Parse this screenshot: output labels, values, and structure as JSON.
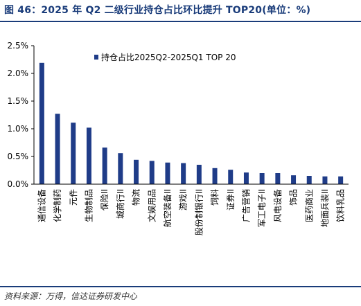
{
  "header": {
    "title": "图 46：2025 年 Q2 二级行业持仓占比环比提升 TOP20(单位：%)"
  },
  "footer": {
    "source": "资料来源：万得，信达证券研发中心"
  },
  "colors": {
    "title": "#1a3c7a",
    "bar": "#1f3c88"
  },
  "chart_data": {
    "type": "bar",
    "title": "",
    "xlabel": "",
    "ylabel": "",
    "categories": [
      "通信设备",
      "化学制药",
      "元件",
      "生物制品",
      "保险II",
      "城商行II",
      "物流",
      "文娱用品",
      "航空装备II",
      "游戏II",
      "股份制银行II",
      "饲料",
      "证券II",
      "广告营销",
      "军工电子II",
      "风电设备",
      "饰品",
      "医药商业",
      "地面兵装II",
      "饮料乳品"
    ],
    "series": [
      {
        "name": "持仓占比2025Q2-2025Q1 TOP 20",
        "values": [
          2.19,
          1.27,
          1.11,
          1.02,
          0.66,
          0.56,
          0.44,
          0.42,
          0.39,
          0.38,
          0.35,
          0.29,
          0.26,
          0.21,
          0.2,
          0.2,
          0.16,
          0.15,
          0.14,
          0.14
        ]
      }
    ],
    "ylim": [
      0,
      2.5
    ],
    "yticks": [
      "0.0%",
      "0.5%",
      "1.0%",
      "1.5%",
      "2.0%",
      "2.5%"
    ],
    "yticks_values": [
      0,
      0.5,
      1.0,
      1.5,
      2.0,
      2.5
    ],
    "grid": false,
    "legend_position": "top-left"
  }
}
